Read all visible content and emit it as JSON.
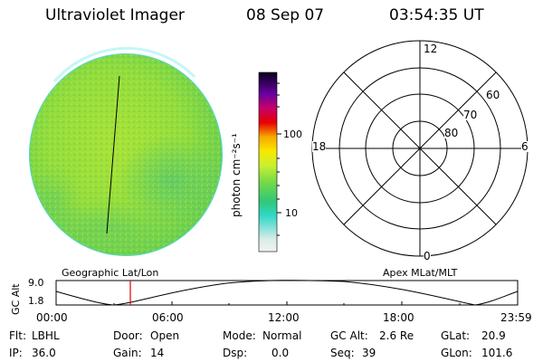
{
  "header": {
    "instrument": "Ultraviolet Imager",
    "date": "08 Sep 07",
    "time": "03:54:35 UT"
  },
  "colorbar": {
    "unit_label": "photon cm⁻²s⁻¹",
    "ticks": [
      "100",
      "10"
    ]
  },
  "polar_plot": {
    "mlt_labels": [
      "12",
      "18",
      "6",
      "0"
    ],
    "lat_labels": [
      "60",
      "70",
      "80"
    ]
  },
  "orbit_panel": {
    "y_axis_label": "GC Alt",
    "y_ticks": [
      "9.0",
      "1.8"
    ],
    "left_title": "Geographic Lat/Lon",
    "right_title": "Apex MLat/MLT",
    "time_ticks": [
      "00:00",
      "06:00",
      "12:00",
      "18:00",
      "23:59"
    ]
  },
  "status": {
    "flt_label": "Flt:",
    "flt_value": "LBHL",
    "ip_label": "IP:",
    "ip_value": "36.0",
    "door_label": "Door:",
    "door_value": "Open",
    "gain_label": "Gain:",
    "gain_value": "14",
    "mode_label": "Mode:",
    "mode_value": "Normal",
    "dsp_label": "Dsp:",
    "dsp_value": "0.0",
    "gcalt_label": "GC Alt:",
    "gcalt_value": "2.6 Re",
    "seq_label": "Seq:",
    "seq_value": "39",
    "glat_label": "GLat:",
    "glat_value": "20.9",
    "glon_label": "GLon:",
    "glon_value": "101.6"
  },
  "colors": {
    "earth_disk": "#9ee03a",
    "earth_dark": "#6fcf4a",
    "limb": "#40d8d0",
    "time_marker": "#e00000"
  }
}
